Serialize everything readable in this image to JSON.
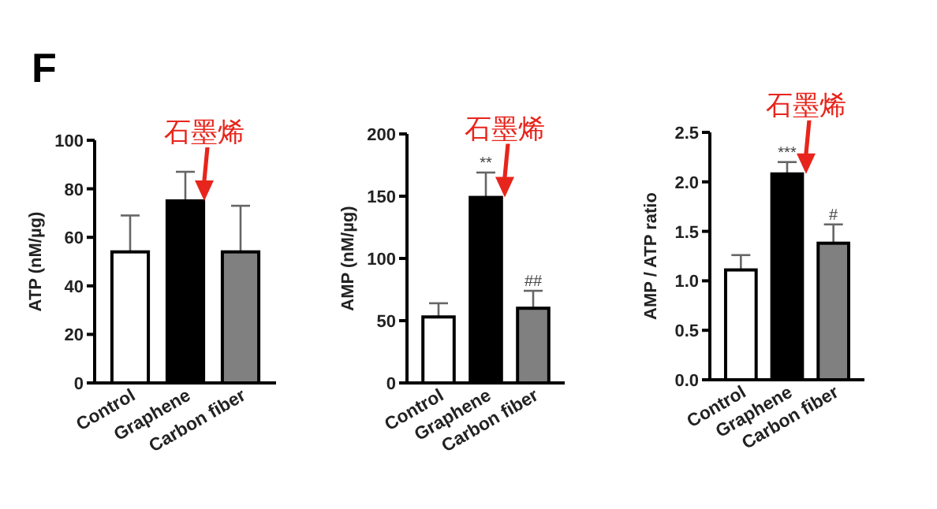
{
  "chart_data": [
    {
      "type": "bar",
      "ylabel": "ATP (nM/µg)",
      "categories": [
        "Control",
        "Graphene",
        "Carbon fiber"
      ],
      "values": [
        54,
        75,
        54
      ],
      "colors": [
        "#ffffff",
        "#000000",
        "#808080"
      ],
      "errors": [
        [
          54,
          69
        ],
        [
          75,
          87
        ],
        [
          54,
          73
        ]
      ],
      "ylim": [
        0,
        100
      ],
      "yticks": [
        0,
        20,
        40,
        60,
        80,
        100
      ],
      "title": "F",
      "annotations": [
        {
          "text": "石墨烯",
          "x": "Graphene",
          "y": 75
        }
      ]
    },
    {
      "type": "bar",
      "ylabel": "AMP (nM/µg)",
      "categories": [
        "Control",
        "Graphene",
        "Carbon fiber"
      ],
      "values": [
        53,
        149,
        60
      ],
      "colors": [
        "#ffffff",
        "#000000",
        "#808080"
      ],
      "errors": [
        [
          53,
          64
        ],
        [
          149,
          169
        ],
        [
          60,
          74
        ]
      ],
      "ylim": [
        0,
        200
      ],
      "yticks": [
        0,
        50,
        100,
        150,
        200
      ],
      "annotations": [
        {
          "text": "**",
          "x": "Graphene",
          "y": 169
        },
        {
          "text": "##",
          "x": "Carbon fiber",
          "y": 74
        },
        {
          "text": "石墨烯",
          "x": "Graphene",
          "y": 149
        }
      ]
    },
    {
      "type": "bar",
      "ylabel": "AMP / ATP ratio",
      "categories": [
        "Control",
        "Graphene",
        "Carbon fiber"
      ],
      "values": [
        1.11,
        2.08,
        1.38
      ],
      "colors": [
        "#ffffff",
        "#000000",
        "#808080"
      ],
      "errors": [
        [
          1.11,
          1.26
        ],
        [
          2.08,
          2.2
        ],
        [
          1.38,
          1.57
        ]
      ],
      "ylim": [
        0,
        2.5
      ],
      "yticks": [
        {
          "value": 0,
          "label": "0.0"
        },
        {
          "value": 0.5,
          "label": "0.5"
        },
        {
          "value": 1,
          "label": "1.0"
        },
        {
          "value": 1.5,
          "label": "1.5"
        },
        {
          "value": 2,
          "label": "2.0"
        },
        {
          "value": 2.5,
          "label": "2.5"
        }
      ],
      "annotations": [
        {
          "text": "***",
          "x": "Graphene",
          "y": 2.2
        },
        {
          "text": "#",
          "x": "Carbon fiber",
          "y": 1.57
        },
        {
          "text": "石墨烯",
          "x": "Graphene",
          "y": 2.08
        }
      ]
    }
  ]
}
